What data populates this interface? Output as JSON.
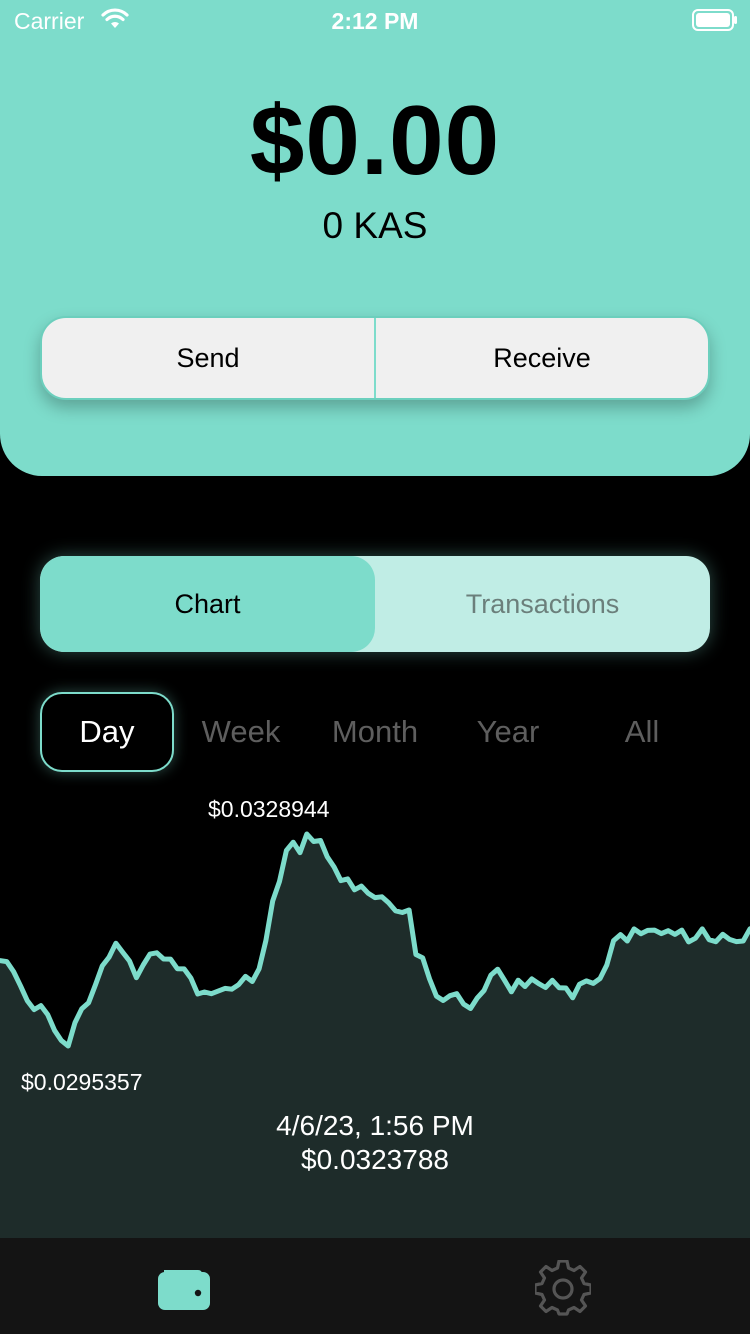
{
  "status_bar": {
    "carrier": "Carrier",
    "time": "2:12 PM"
  },
  "wallet": {
    "balance_usd": "$0.00",
    "balance_kas": "0 KAS"
  },
  "actions": {
    "send_label": "Send",
    "receive_label": "Receive"
  },
  "view_tabs": {
    "chart_label": "Chart",
    "transactions_label": "Transactions",
    "selected": "Chart"
  },
  "ranges": {
    "day": "Day",
    "week": "Week",
    "month": "Month",
    "year": "Year",
    "all": "All",
    "selected": "Day"
  },
  "chart": {
    "high_label": "$0.0328944",
    "low_label": "$0.0295357",
    "selected_date": "4/6/23, 1:56 PM",
    "selected_price": "$0.0323788"
  },
  "colors": {
    "accent": "#7ddccb",
    "chart_fill": "#1e2c2a",
    "tab_bar": "#141414"
  },
  "icons": {
    "wallet_tab": "wallet-icon",
    "settings_tab": "gear-icon"
  },
  "chart_data": {
    "type": "area",
    "y_high": 0.0328944,
    "y_low": 0.0295357,
    "values": [
      0.030889,
      0.030873,
      0.030714,
      0.030489,
      0.030254,
      0.030113,
      0.030175,
      0.030033,
      0.029784,
      0.029621,
      0.029536,
      0.029906,
      0.030126,
      0.030222,
      0.030507,
      0.030804,
      0.030944,
      0.031164,
      0.031021,
      0.030883,
      0.030617,
      0.030819,
      0.030991,
      0.031012,
      0.030914,
      0.030913,
      0.03076,
      0.030757,
      0.030611,
      0.030359,
      0.030391,
      0.030364,
      0.030406,
      0.030449,
      0.030436,
      0.030507,
      0.030639,
      0.030558,
      0.030759,
      0.031207,
      0.031834,
      0.032144,
      0.032633,
      0.032765,
      0.032598,
      0.032894,
      0.032776,
      0.032791,
      0.032532,
      0.032372,
      0.032156,
      0.032183,
      0.03201,
      0.032069,
      0.031955,
      0.031887,
      0.031899,
      0.031805,
      0.031678,
      0.03165,
      0.031691,
      0.030986,
      0.030932,
      0.0306,
      0.030326,
      0.030256,
      0.030333,
      0.030365,
      0.0302,
      0.03013,
      0.030297,
      0.030416,
      0.030659,
      0.030752,
      0.030578,
      0.030395,
      0.030578,
      0.030479,
      0.030599,
      0.030525,
      0.030462,
      0.030577,
      0.030459,
      0.030455,
      0.030299,
      0.030513,
      0.030567,
      0.030528,
      0.030603,
      0.030819,
      0.031206,
      0.0313,
      0.031199,
      0.031391,
      0.031315,
      0.031367,
      0.031372,
      0.031316,
      0.031363,
      0.031303,
      0.031372,
      0.031185,
      0.031244,
      0.031391,
      0.03122,
      0.031188,
      0.031305,
      0.031225,
      0.03119,
      0.031199,
      0.031393
    ]
  }
}
